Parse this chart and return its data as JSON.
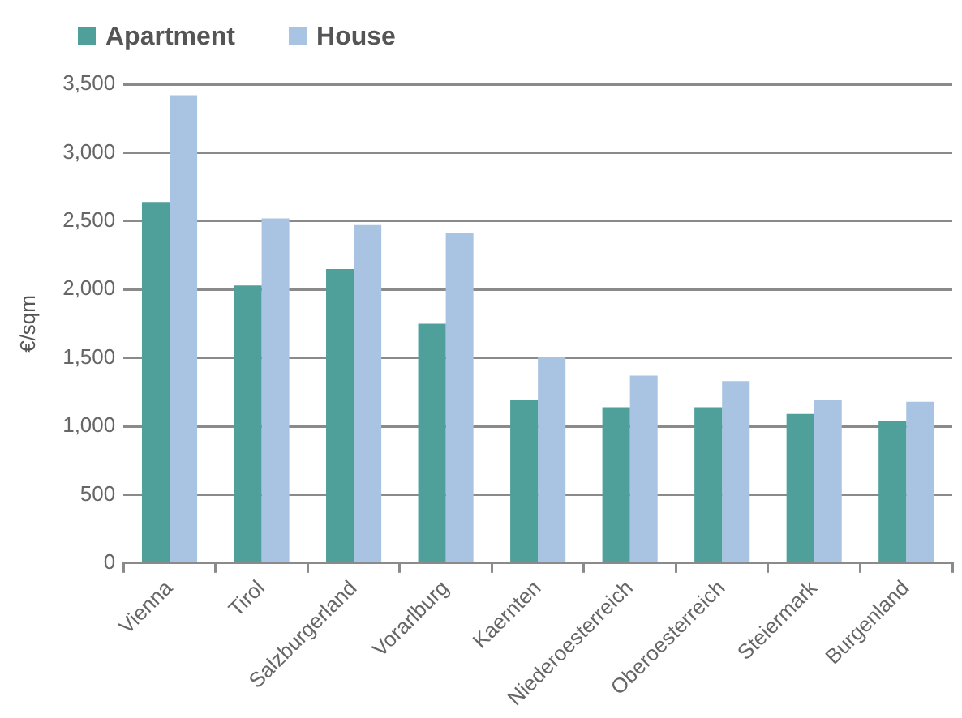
{
  "chart_data": {
    "type": "bar",
    "ylabel": "€/sqm",
    "categories": [
      "Vienna",
      "Tirol",
      "Salzburgerland",
      "Vorarlburg",
      "Kaernten",
      "Niederoesterreich",
      "Oberoesterreich",
      "Steiermark",
      "Burgenland"
    ],
    "series": [
      {
        "name": "Apartment",
        "color": "#4fa09b",
        "values": [
          2640,
          2030,
          2150,
          1750,
          1190,
          1140,
          1140,
          1090,
          1040
        ]
      },
      {
        "name": "House",
        "color": "#a9c4e3",
        "values": [
          3420,
          2520,
          2470,
          2410,
          1510,
          1370,
          1330,
          1190,
          1180
        ]
      }
    ],
    "ylim": [
      0,
      3500
    ],
    "yticks": [
      0,
      500,
      {
        "value": 1000,
        "label": "1,000"
      },
      {
        "value": 1500,
        "label": "1,500"
      },
      {
        "value": 2000,
        "label": "2,000"
      },
      {
        "value": 2500,
        "label": "2,500"
      },
      {
        "value": 3000,
        "label": "3,000"
      },
      {
        "value": 3500,
        "label": "3,500"
      }
    ],
    "grid": "y",
    "legend": "top left"
  }
}
